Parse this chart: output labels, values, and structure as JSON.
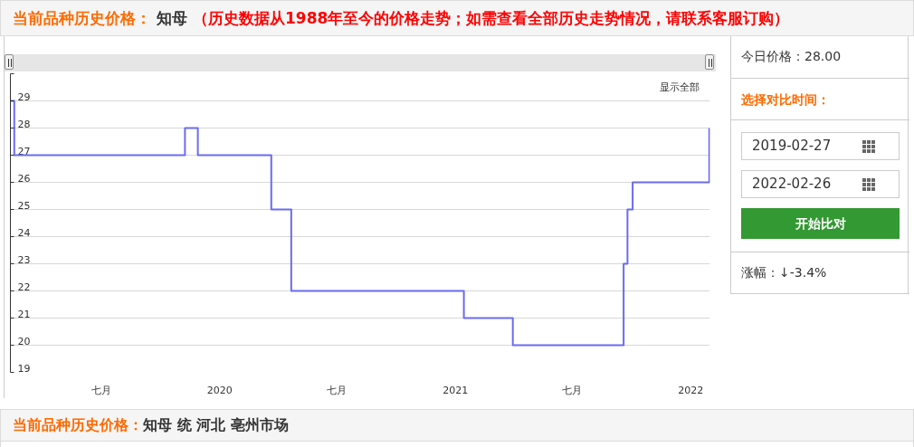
{
  "chart_data": {
    "type": "step",
    "title": "当前品种历史价格：",
    "subtitle": "知母",
    "x": [
      "2019-02-10",
      "2019-02-16",
      "2019-11-08",
      "2019-11-28",
      "2020-03-21",
      "2020-04-21",
      "2021-01-14",
      "2021-03-31",
      "2021-09-19",
      "2021-09-25",
      "2021-10-03",
      "2022-01-30"
    ],
    "values": [
      29,
      27,
      28,
      27,
      25,
      22,
      21,
      20,
      23,
      25,
      26,
      28
    ],
    "color": "#6b6bf2",
    "xlim": [
      "2019-02-10",
      "2022-01-31"
    ],
    "xticks": [
      {
        "value": "2019-07-01",
        "label": "七月"
      },
      {
        "value": "2020-01-01",
        "label": "2020"
      },
      {
        "value": "2020-07-01",
        "label": "七月"
      },
      {
        "value": "2021-01-01",
        "label": "2021"
      },
      {
        "value": "2021-07-01",
        "label": "七月"
      },
      {
        "value": "2022-01-01",
        "label": "2022"
      }
    ],
    "ylim": [
      19,
      30
    ],
    "yticks": [
      19,
      20,
      21,
      22,
      23,
      24,
      25,
      26,
      27,
      28,
      29,
      {
        "value": 30,
        "label": null
      }
    ],
    "grid": "y",
    "annotations": [
      "（历史数据从1988年至今的价格走势；如需查看全部历史走势情况，请联系客服订购）",
      "显示全部",
      "今日价格：28.00",
      "选择对比时间：",
      "2019-02-27",
      "2022-02-26",
      "开始比对",
      "涨幅：↓-3.4%",
      "当前品种历史价格：",
      "知母 统 河北 亳州市场"
    ]
  }
}
